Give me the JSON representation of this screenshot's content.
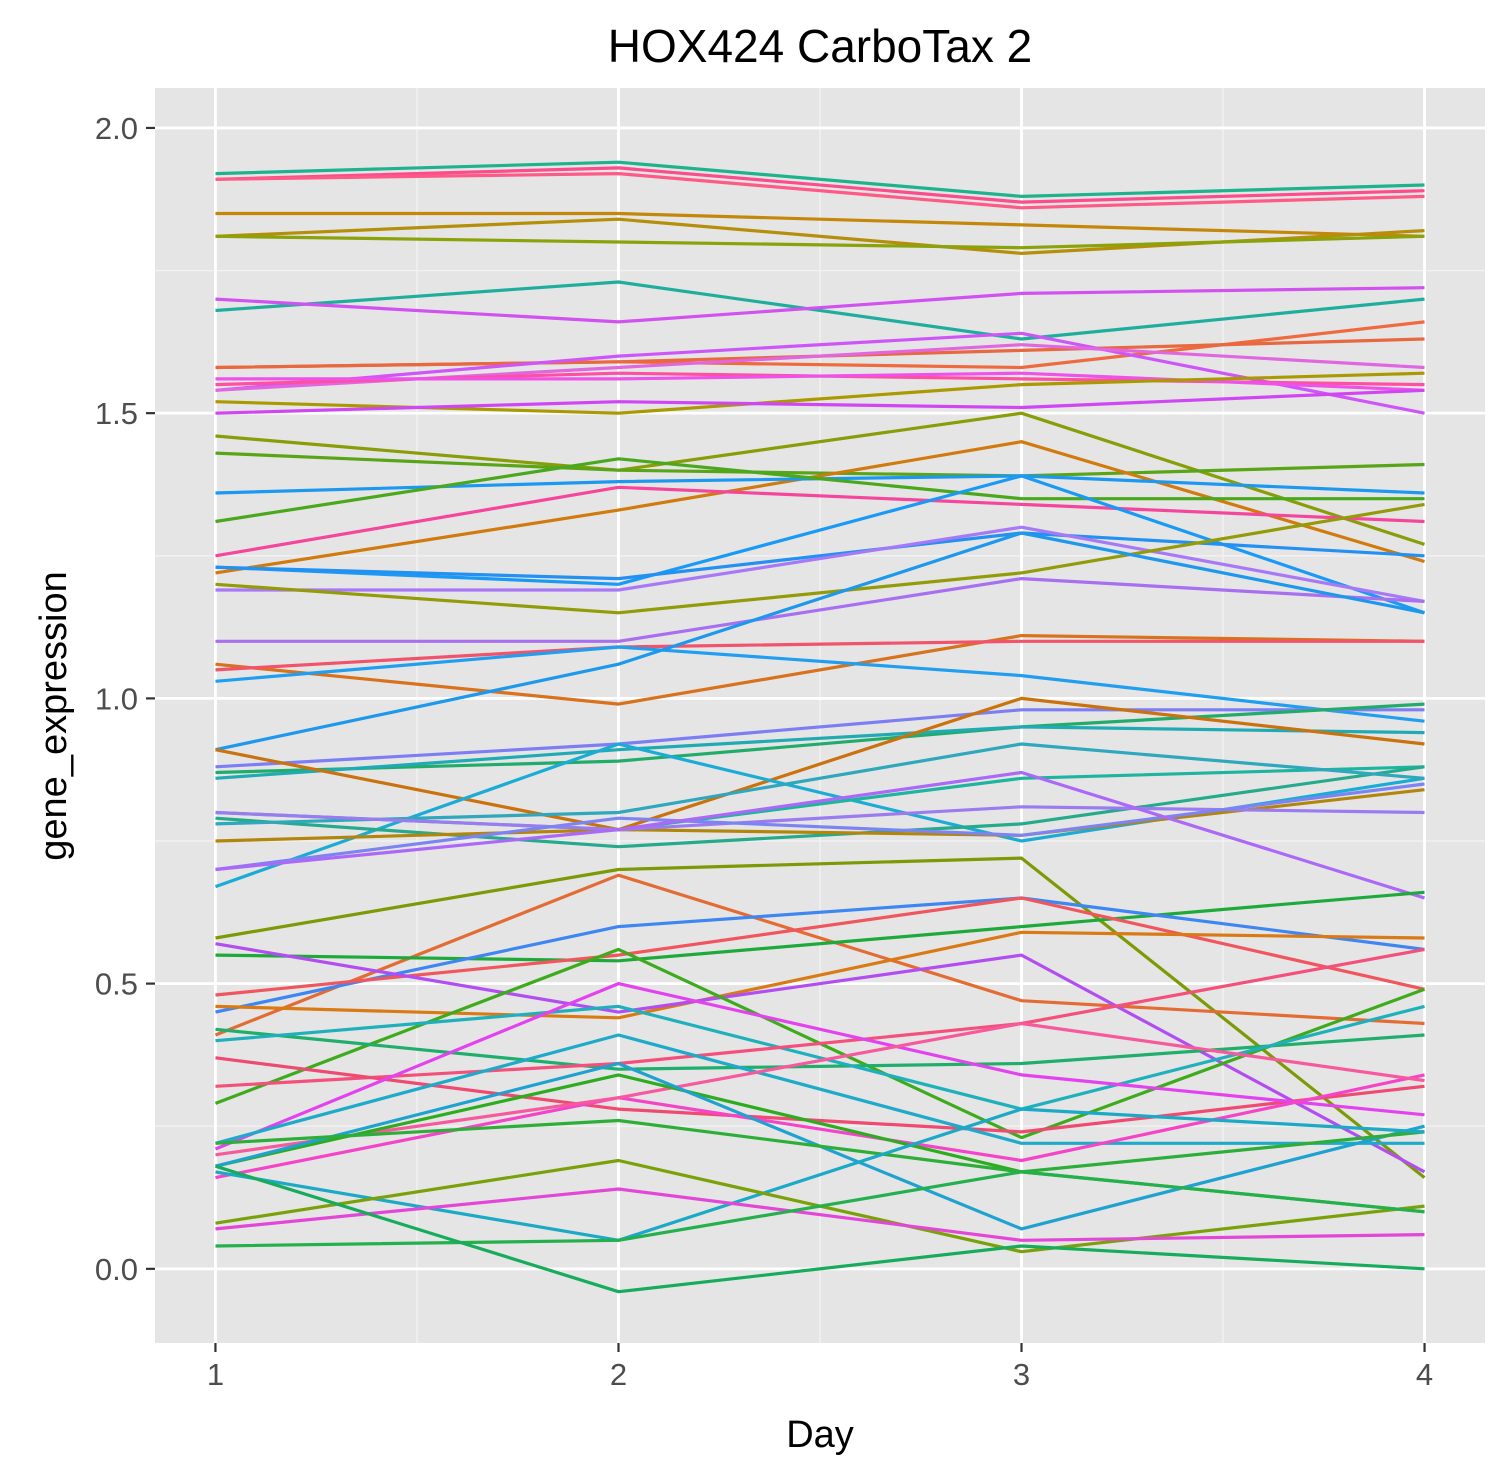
{
  "chart_data": {
    "type": "line",
    "title": "HOX424 CarboTax 2",
    "xlabel": "Day",
    "ylabel": "gene_expression",
    "x": [
      1,
      2,
      3,
      4
    ],
    "x_ticks": [
      "1",
      "2",
      "3",
      "4"
    ],
    "y_ticks": [
      "0.0",
      "0.5",
      "1.0",
      "1.5",
      "2.0"
    ],
    "xlim": [
      0.85,
      4.15
    ],
    "ylim": [
      -0.13,
      2.07
    ],
    "grid": true,
    "legend": "none",
    "background": "#e5e5e5",
    "series": [
      {
        "color": "#1fb28e",
        "values": [
          1.92,
          1.94,
          1.88,
          1.9
        ]
      },
      {
        "color": "#fb4c8c",
        "values": [
          1.91,
          1.93,
          1.87,
          1.89
        ]
      },
      {
        "color": "#fd5a86",
        "values": [
          1.91,
          1.92,
          1.86,
          1.88
        ]
      },
      {
        "color": "#c4870a",
        "values": [
          1.85,
          1.85,
          1.83,
          1.81
        ]
      },
      {
        "color": "#b58f0a",
        "values": [
          1.81,
          1.84,
          1.78,
          1.82
        ]
      },
      {
        "color": "#8ca20a",
        "values": [
          1.81,
          1.8,
          1.79,
          1.81
        ]
      },
      {
        "color": "#1fae9e",
        "values": [
          1.68,
          1.73,
          1.63,
          1.7
        ]
      },
      {
        "color": "#d152f0",
        "values": [
          1.7,
          1.66,
          1.71,
          1.72
        ]
      },
      {
        "color": "#ef6a3f",
        "values": [
          1.58,
          1.59,
          1.58,
          1.66
        ]
      },
      {
        "color": "#e8683f",
        "values": [
          1.58,
          1.59,
          1.61,
          1.63
        ]
      },
      {
        "color": "#ce56f8",
        "values": [
          1.54,
          1.6,
          1.64,
          1.5
        ]
      },
      {
        "color": "#e067e0",
        "values": [
          1.54,
          1.58,
          1.62,
          1.58
        ]
      },
      {
        "color": "#ff4fa0",
        "values": [
          1.55,
          1.57,
          1.56,
          1.55
        ]
      },
      {
        "color": "#ee52e8",
        "values": [
          1.56,
          1.56,
          1.57,
          1.54
        ]
      },
      {
        "color": "#aa9a00",
        "values": [
          1.52,
          1.5,
          1.55,
          1.57
        ]
      },
      {
        "color": "#d046f4",
        "values": [
          1.5,
          1.52,
          1.51,
          1.54
        ]
      },
      {
        "color": "#899d08",
        "values": [
          1.46,
          1.4,
          1.5,
          1.27
        ]
      },
      {
        "color": "#5aa517",
        "values": [
          1.43,
          1.4,
          1.39,
          1.41
        ]
      },
      {
        "color": "#d17a0d",
        "values": [
          1.22,
          1.33,
          1.45,
          1.24
        ]
      },
      {
        "color": "#1c98f0",
        "values": [
          1.36,
          1.38,
          1.39,
          1.36
        ]
      },
      {
        "color": "#f5469c",
        "values": [
          1.25,
          1.37,
          1.34,
          1.31
        ]
      },
      {
        "color": "#4aa81d",
        "values": [
          1.31,
          1.42,
          1.35,
          1.35
        ]
      },
      {
        "color": "#1a9af5",
        "values": [
          1.23,
          1.2,
          1.39,
          1.15
        ]
      },
      {
        "color": "#2390f2",
        "values": [
          1.23,
          1.21,
          1.29,
          1.25
        ]
      },
      {
        "color": "#a879f6",
        "values": [
          1.19,
          1.19,
          1.3,
          1.17
        ]
      },
      {
        "color": "#939b09",
        "values": [
          1.2,
          1.15,
          1.22,
          1.34
        ]
      },
      {
        "color": "#a86ff1",
        "values": [
          1.1,
          1.1,
          1.21,
          1.17
        ]
      },
      {
        "color": "#d8721c",
        "values": [
          1.06,
          0.99,
          1.11,
          1.1
        ]
      },
      {
        "color": "#f1546a",
        "values": [
          1.05,
          1.09,
          1.1,
          1.1
        ]
      },
      {
        "color": "#219eef",
        "values": [
          1.03,
          1.09,
          1.04,
          0.96
        ]
      },
      {
        "color": "#1e98ec",
        "values": [
          0.91,
          1.06,
          1.29,
          1.15
        ]
      },
      {
        "color": "#7d7ef3",
        "values": [
          0.88,
          0.92,
          0.98,
          0.98
        ]
      },
      {
        "color": "#22ac6c",
        "values": [
          0.87,
          0.89,
          0.95,
          0.99
        ]
      },
      {
        "color": "#1faab4",
        "values": [
          0.86,
          0.91,
          0.95,
          0.94
        ]
      },
      {
        "color": "#c9720e",
        "values": [
          0.91,
          0.77,
          1.0,
          0.92
        ]
      },
      {
        "color": "#1bacd6",
        "values": [
          0.67,
          0.92,
          0.75,
          0.86
        ]
      },
      {
        "color": "#1db4a0",
        "values": [
          0.8,
          0.77,
          0.86,
          0.88
        ]
      },
      {
        "color": "#25aa8c",
        "values": [
          0.79,
          0.74,
          0.78,
          0.88
        ]
      },
      {
        "color": "#2fa7bc",
        "values": [
          0.78,
          0.8,
          0.92,
          0.86
        ]
      },
      {
        "color": "#b2860c",
        "values": [
          0.75,
          0.77,
          0.76,
          0.84
        ]
      },
      {
        "color": "#9b7cf0",
        "values": [
          0.8,
          0.77,
          0.81,
          0.8
        ]
      },
      {
        "color": "#7d84f2",
        "values": [
          0.7,
          0.79,
          0.76,
          0.85
        ]
      },
      {
        "color": "#ac68f6",
        "values": [
          0.7,
          0.77,
          0.87,
          0.65
        ]
      },
      {
        "color": "#7c9906",
        "values": [
          0.58,
          0.7,
          0.72,
          0.16
        ]
      },
      {
        "color": "#e36c34",
        "values": [
          0.41,
          0.69,
          0.47,
          0.43
        ]
      },
      {
        "color": "#1daa3a",
        "values": [
          0.55,
          0.54,
          0.6,
          0.66
        ]
      },
      {
        "color": "#3e86f2",
        "values": [
          0.45,
          0.6,
          0.65,
          0.56
        ]
      },
      {
        "color": "#f0565e",
        "values": [
          0.48,
          0.55,
          0.65,
          0.49
        ]
      },
      {
        "color": "#d97a14",
        "values": [
          0.46,
          0.44,
          0.59,
          0.58
        ]
      },
      {
        "color": "#b24df2",
        "values": [
          0.57,
          0.45,
          0.55,
          0.17
        ]
      },
      {
        "color": "#3dab1c",
        "values": [
          0.29,
          0.56,
          0.23,
          0.49
        ]
      },
      {
        "color": "#1fae6c",
        "values": [
          0.42,
          0.35,
          0.36,
          0.41
        ]
      },
      {
        "color": "#1fb0bc",
        "values": [
          0.4,
          0.46,
          0.28,
          0.46
        ]
      },
      {
        "color": "#f4507c",
        "values": [
          0.32,
          0.36,
          0.43,
          0.56
        ]
      },
      {
        "color": "#ef4a72",
        "values": [
          0.37,
          0.28,
          0.24,
          0.32
        ]
      },
      {
        "color": "#e343ee",
        "values": [
          0.21,
          0.5,
          0.34,
          0.27
        ]
      },
      {
        "color": "#1eaac8",
        "values": [
          0.22,
          0.41,
          0.22,
          0.22
        ]
      },
      {
        "color": "#f445c8",
        "values": [
          0.16,
          0.3,
          0.19,
          0.34
        ]
      },
      {
        "color": "#f65a9c",
        "values": [
          0.2,
          0.3,
          0.43,
          0.33
        ]
      },
      {
        "color": "#2dac1f",
        "values": [
          0.18,
          0.34,
          0.17,
          0.1
        ]
      },
      {
        "color": "#1fa2d0",
        "values": [
          0.18,
          0.36,
          0.07,
          0.25
        ]
      },
      {
        "color": "#2cae38",
        "values": [
          0.22,
          0.26,
          0.17,
          0.24
        ]
      },
      {
        "color": "#1ba9c6",
        "values": [
          0.17,
          0.05,
          0.28,
          0.24
        ]
      },
      {
        "color": "#7ba10a",
        "values": [
          0.08,
          0.19,
          0.03,
          0.11
        ]
      },
      {
        "color": "#e247d8",
        "values": [
          0.07,
          0.14,
          0.05,
          0.06
        ]
      },
      {
        "color": "#25b04e",
        "values": [
          0.04,
          0.05,
          0.17,
          0.1
        ]
      },
      {
        "color": "#16ac5c",
        "values": [
          0.18,
          -0.04,
          0.04,
          0.0
        ]
      }
    ]
  }
}
